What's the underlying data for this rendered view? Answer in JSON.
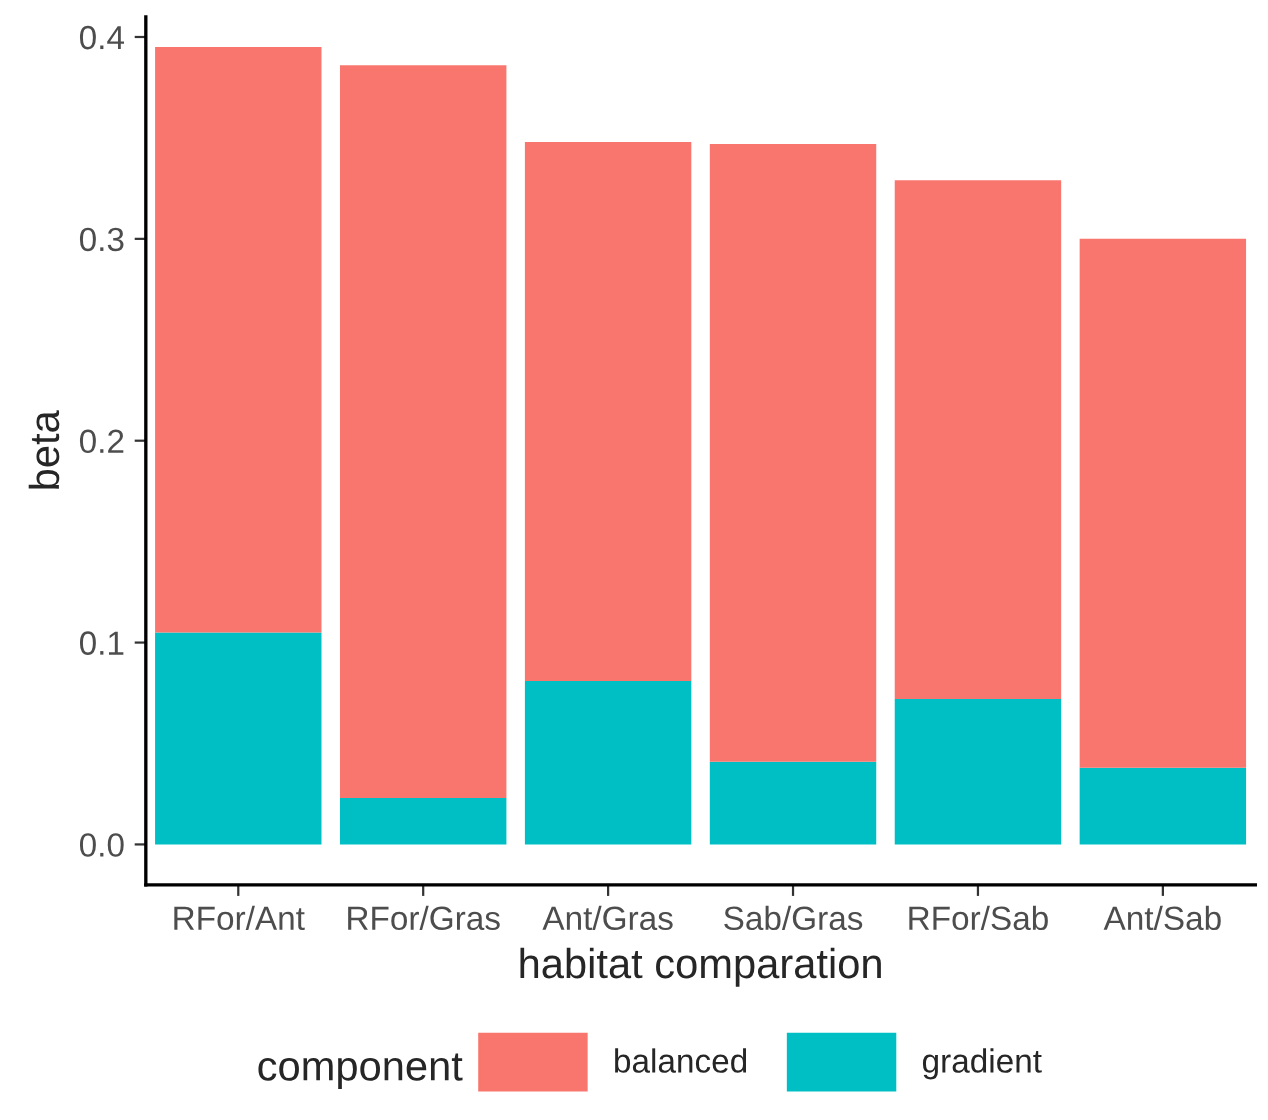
{
  "chart_data": {
    "type": "bar",
    "stacked": true,
    "xlabel": "habitat comparation",
    "ylabel": "beta",
    "legend_title": "component",
    "categories": [
      "RFor/Ant",
      "RFor/Gras",
      "Ant/Gras",
      "Sab/Gras",
      "RFor/Sab",
      "Ant/Sab"
    ],
    "series": [
      {
        "name": "gradient",
        "color": "#00bfc4",
        "values": [
          0.105,
          0.023,
          0.081,
          0.041,
          0.072,
          0.038
        ]
      },
      {
        "name": "balanced",
        "color": "#f8766d",
        "values": [
          0.29,
          0.363,
          0.267,
          0.306,
          0.257,
          0.262
        ]
      }
    ],
    "ylim": [
      -0.02,
      0.41
    ],
    "yticks": [
      {
        "value": 0,
        "label": "0.0"
      },
      0.1,
      0.2,
      0.3,
      0.4
    ],
    "grid": false,
    "legend": "bottom"
  }
}
